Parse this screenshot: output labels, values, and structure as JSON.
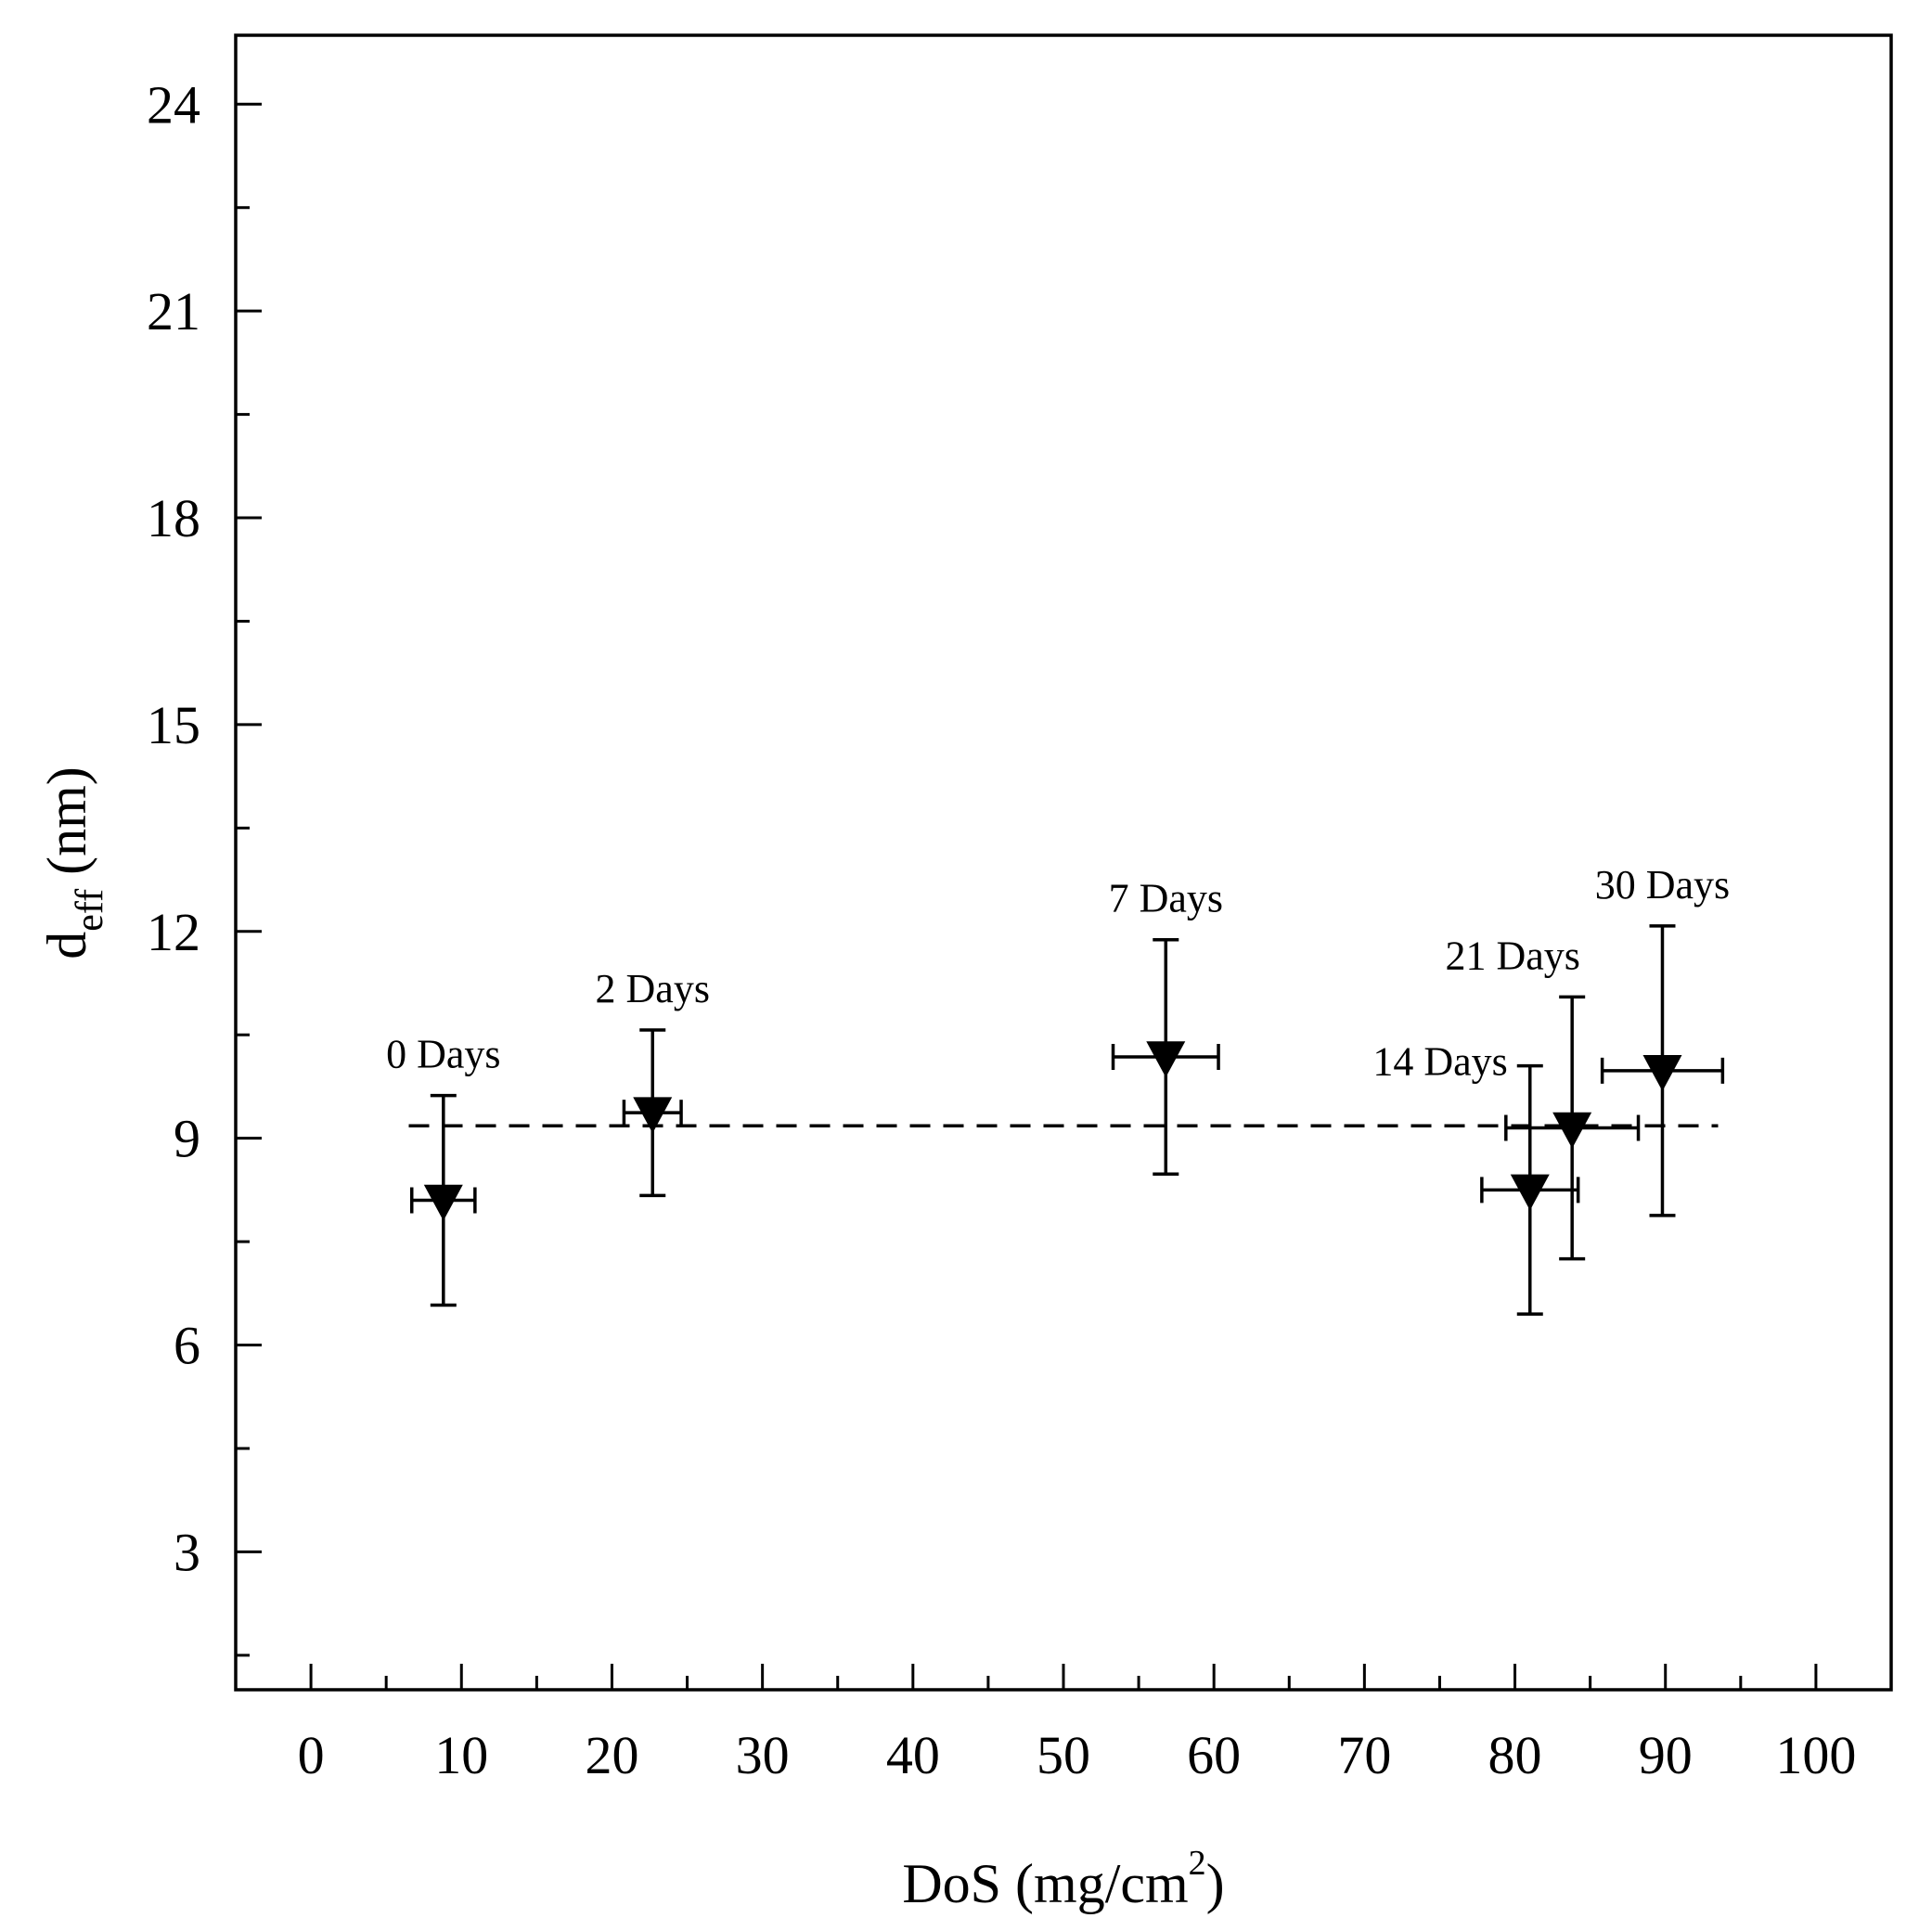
{
  "chart_data": {
    "type": "scatter",
    "title": "",
    "xlabel": "DoS (mg/cm",
    "xlabel_sup": "2",
    "xlabel_close": ")",
    "ylabel_main": "d",
    "ylabel_sub": "eff",
    "ylabel_unit": " (nm)",
    "xlim": [
      -5,
      105
    ],
    "ylim": [
      1,
      25
    ],
    "x_ticks": [
      0,
      10,
      20,
      30,
      40,
      50,
      60,
      70,
      80,
      90,
      100
    ],
    "x_tick_labels": [
      "0",
      "10",
      "20",
      "30",
      "40",
      "50",
      "60",
      "70",
      "80",
      "90",
      "100"
    ],
    "y_ticks": [
      3,
      6,
      9,
      12,
      15,
      18,
      21,
      24
    ],
    "y_tick_labels": [
      "3",
      "6",
      "9",
      "12",
      "15",
      "18",
      "21",
      "24"
    ],
    "marker": "triangle-down",
    "grid": false,
    "series": [
      {
        "name": "d_eff",
        "points": [
          {
            "label": "0 Days",
            "x": 8.8,
            "y": 8.1,
            "xerr": 2.1,
            "yerr": 1.52
          },
          {
            "label": "2 Days",
            "x": 22.7,
            "y": 9.37,
            "xerr": 1.9,
            "yerr": 1.2
          },
          {
            "label": "7 Days",
            "x": 56.8,
            "y": 10.18,
            "xerr": 3.5,
            "yerr": 1.7
          },
          {
            "label": "14 Days",
            "x": 81.0,
            "y": 8.25,
            "xerr": 3.2,
            "yerr": 1.8
          },
          {
            "label": "21 Days",
            "x": 83.8,
            "y": 9.15,
            "xerr": 4.4,
            "yerr": 1.9
          },
          {
            "label": "30 Days",
            "x": 89.8,
            "y": 9.98,
            "xerr": 4.0,
            "yerr": 2.1
          }
        ]
      }
    ],
    "reference_line": {
      "style": "dashed",
      "y": 9.18,
      "x_start": 6.5,
      "x_end": 93.5
    }
  }
}
